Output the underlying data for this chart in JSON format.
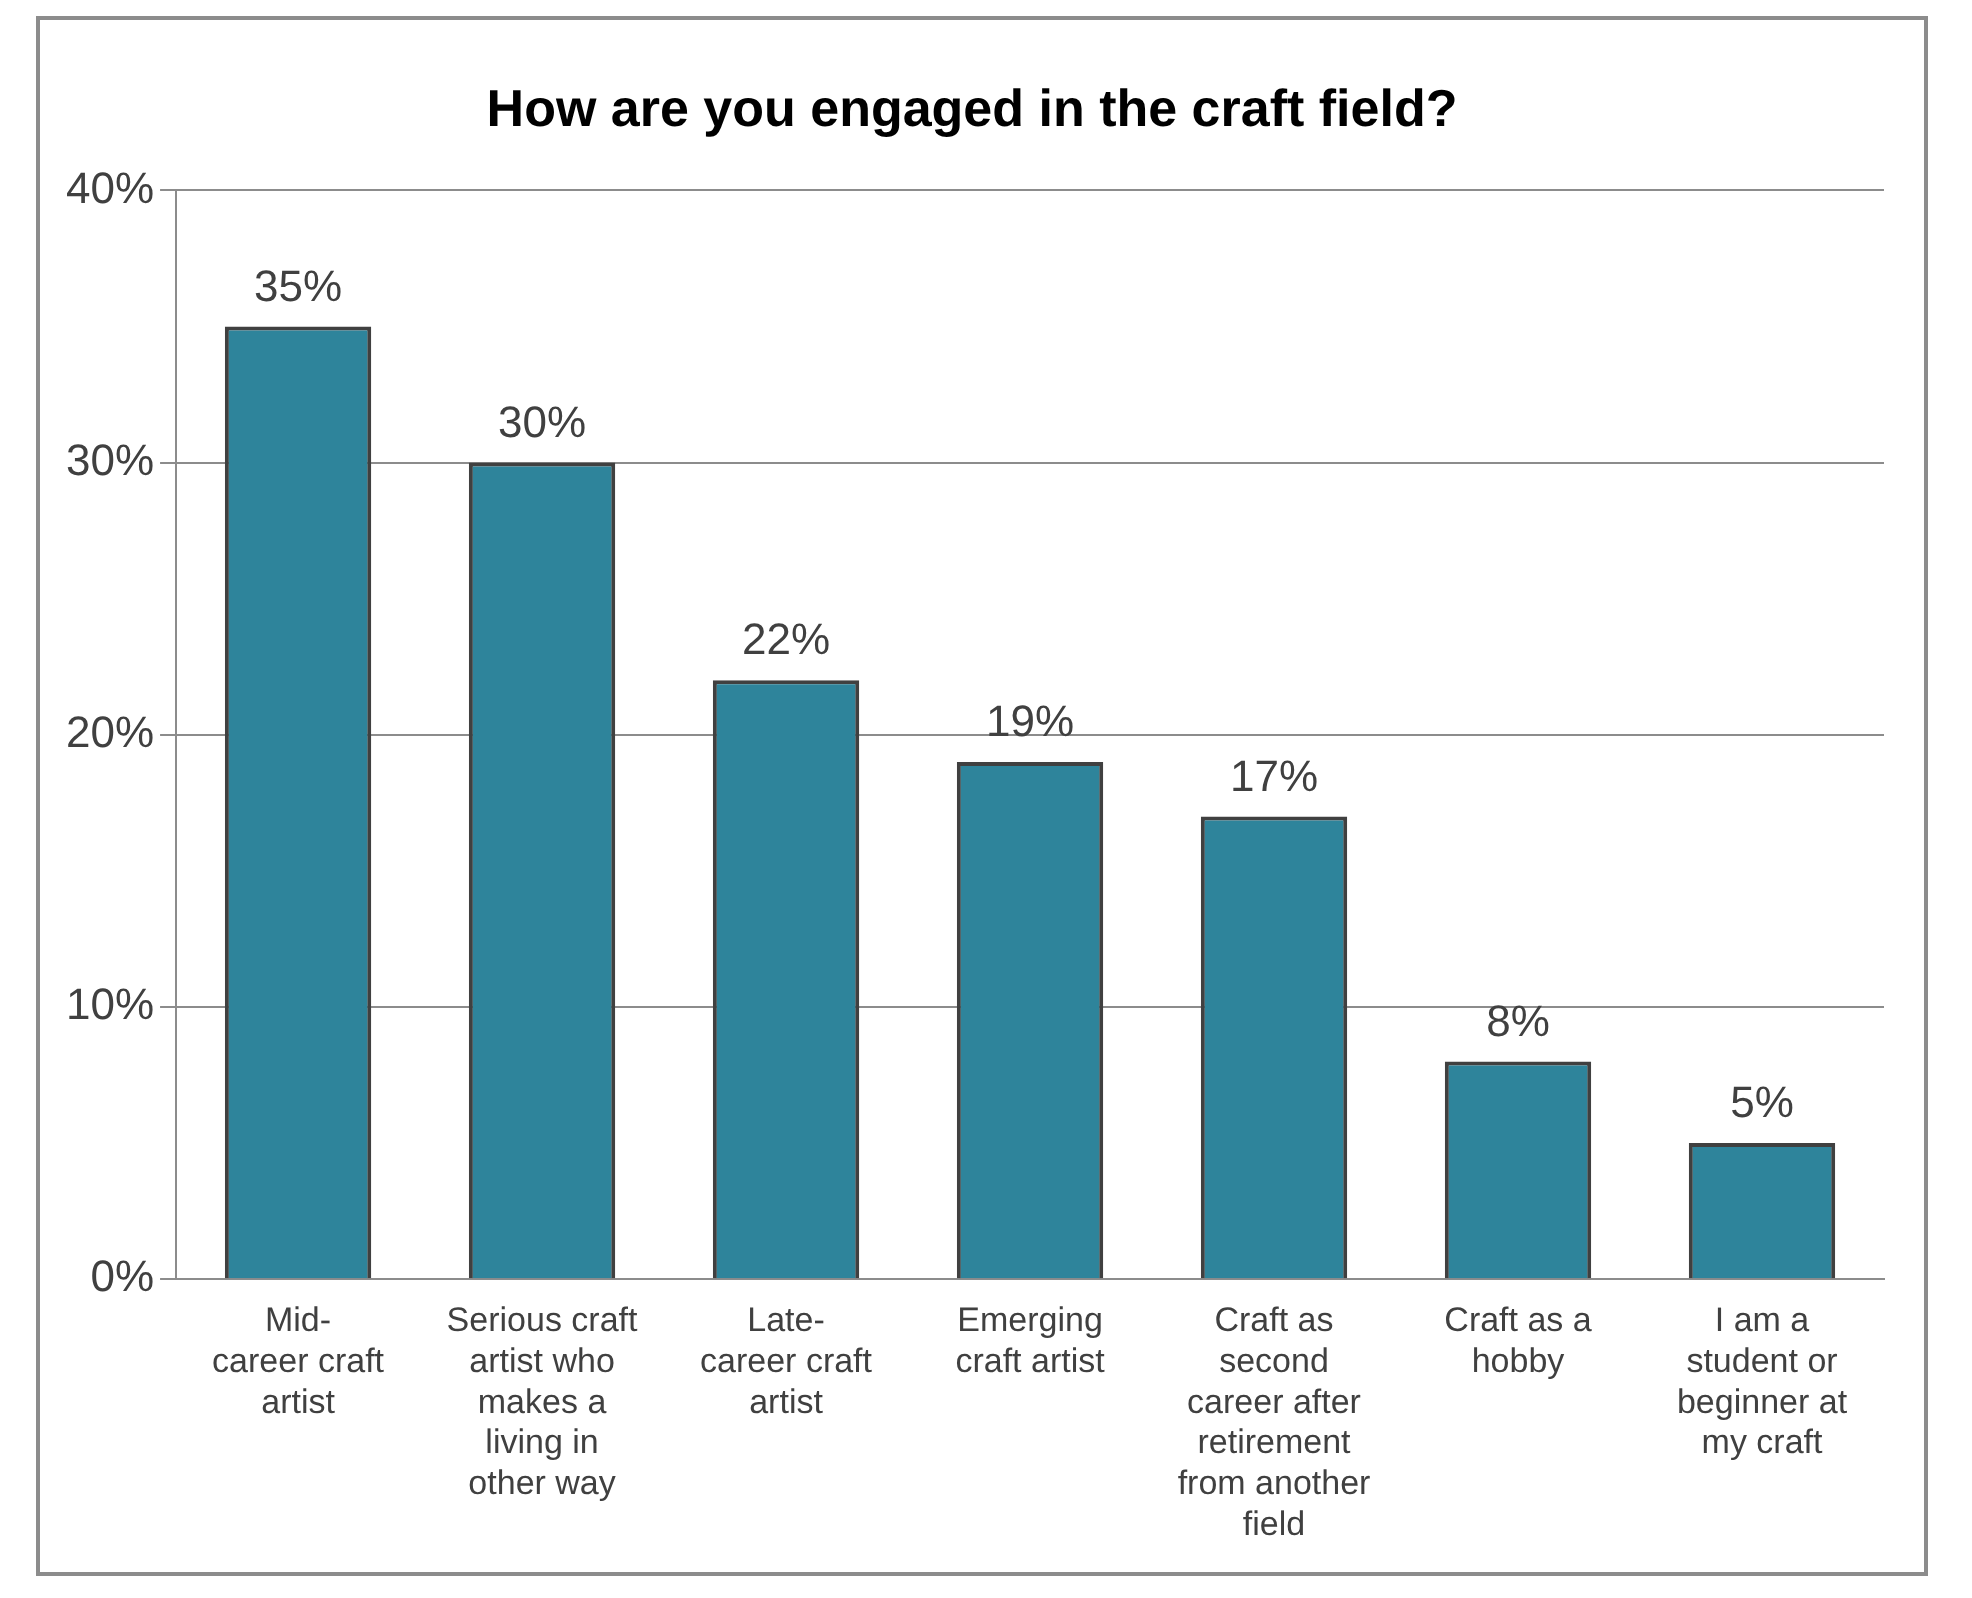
{
  "chart_data": {
    "type": "bar",
    "title": "How are you engaged in the craft field?",
    "categories": [
      "Mid-career craft artist",
      "Serious craft artist who makes a living in other way",
      "Late-career craft artist",
      "Emerging craft artist",
      "Craft as second career after retirement from another field",
      "Craft as a hobby",
      "I am a student or beginner at my craft"
    ],
    "values": [
      35,
      30,
      22,
      19,
      17,
      8,
      5
    ],
    "value_labels": [
      "35%",
      "30%",
      "22%",
      "19%",
      "17%",
      "8%",
      "5%"
    ],
    "color": "#2e849b",
    "ylim": [
      0,
      40
    ],
    "yticks": [
      {
        "value": 0,
        "label": "0%"
      },
      {
        "value": 10,
        "label": "10%"
      },
      {
        "value": 20,
        "label": "20%"
      },
      {
        "value": 30,
        "label": "30%"
      },
      {
        "value": 40,
        "label": "40%"
      }
    ],
    "grid": "y",
    "legend": false
  }
}
